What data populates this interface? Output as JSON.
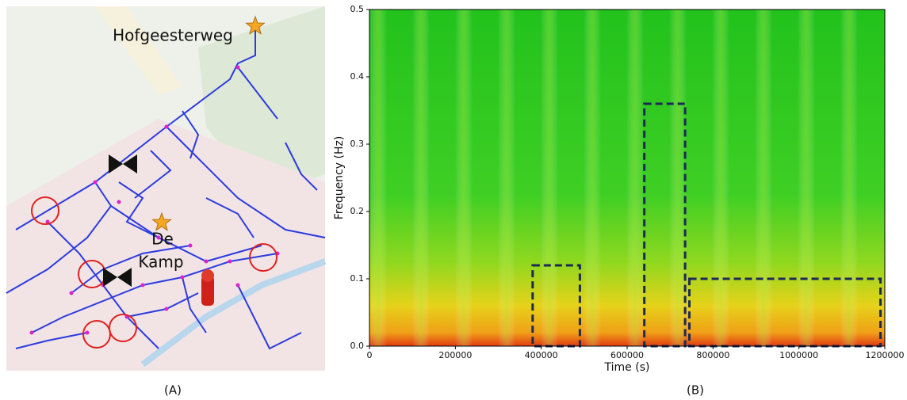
{
  "map": {
    "labels": [
      "Hofgeesterweg",
      "De",
      "Kamp"
    ],
    "caption": "(A)"
  },
  "chart_data": {
    "type": "spectrogram",
    "caption": "(B)",
    "xlabel": "Time (s)",
    "ylabel": "Frequency (Hz)",
    "xlim": [
      0,
      1200000
    ],
    "ylim": [
      0,
      0.5
    ],
    "xticks": [
      0,
      200000,
      400000,
      600000,
      800000,
      1000000,
      1200000
    ],
    "yticks": [
      {
        "value": 0,
        "label": "0.0"
      },
      0.1,
      0.2,
      0.3,
      0.4,
      0.5
    ],
    "boxes": [
      {
        "x": [
          380000,
          490000
        ],
        "y": [
          0,
          0.12
        ]
      },
      {
        "x": [
          640000,
          735000
        ],
        "y": [
          0,
          0.36
        ]
      },
      {
        "x": [
          745000,
          1190000
        ],
        "y": [
          0,
          0.1
        ]
      }
    ],
    "box_color": "#1c2a55"
  }
}
